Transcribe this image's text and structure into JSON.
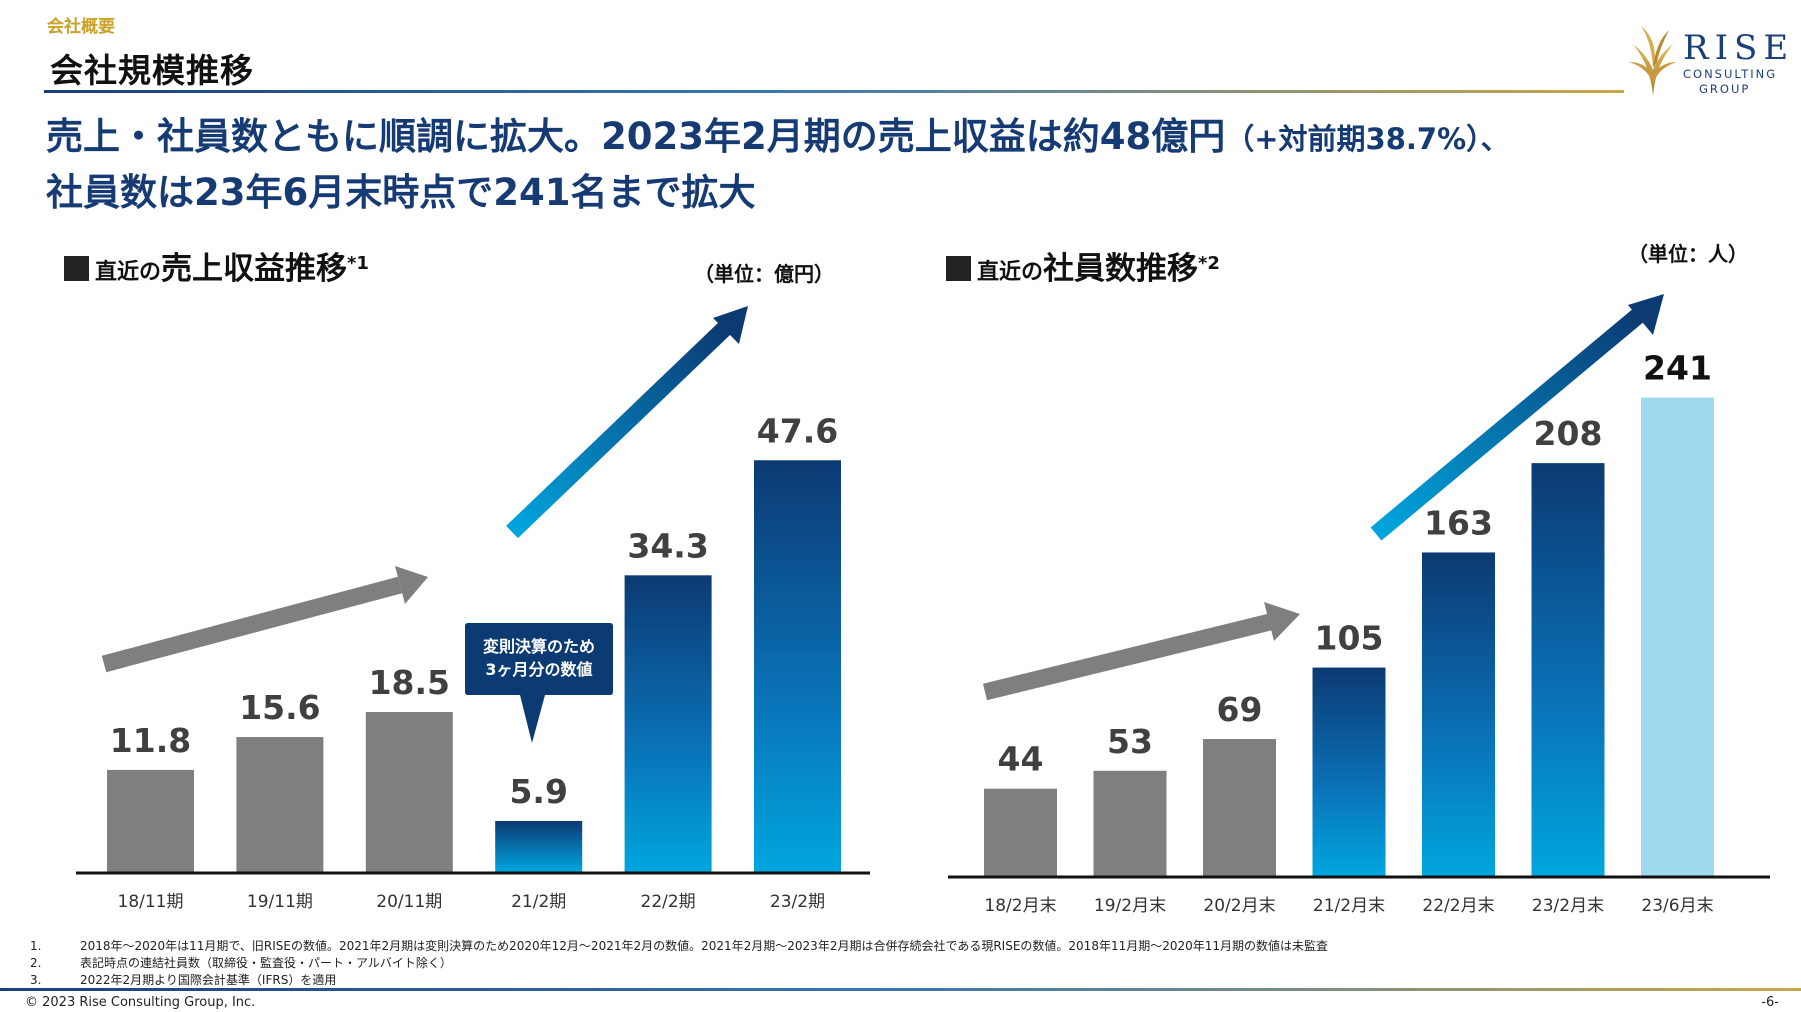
{
  "header": {
    "section_label": "会社概要",
    "page_title": "会社規模推移"
  },
  "logo": {
    "name": "RISE",
    "sub1": "CONSULTING",
    "sub2": "GROUP"
  },
  "headline": {
    "line1_main": "売上・社員数ともに順調に拡大。2023年2月期の売上収益は約48億円",
    "line1_small": "（+対前期38.7%）、",
    "line2": "社員数は23年6月末時点で241名まで拡大"
  },
  "revenue_chart": {
    "heading_prefix": "直近の",
    "heading_main": "売上収益推移",
    "heading_sup": "*1",
    "unit": "（単位：億円）",
    "callout_line1": "変則決算のため",
    "callout_line2": "3ヶ月分の数値"
  },
  "employee_chart": {
    "heading_prefix": "直近の",
    "heading_main": "社員数推移",
    "heading_sup": "*2",
    "unit": "（単位：人）"
  },
  "chart_data": [
    {
      "type": "bar",
      "title": "直近の売上収益推移*1",
      "unit": "（単位：億円）",
      "categories": [
        "18/11期",
        "19/11期",
        "20/11期",
        "21/2期",
        "22/2期",
        "23/2期"
      ],
      "values": [
        11.8,
        15.6,
        18.5,
        5.9,
        34.3,
        47.6
      ],
      "value_labels": [
        "11.8",
        "15.6",
        "18.5",
        "5.9",
        "34.3",
        "47.6"
      ],
      "bar_styles": [
        "gray",
        "gray",
        "gray",
        "blue-light",
        "blue-gradient",
        "blue-gradient"
      ],
      "ylim": [
        0,
        55
      ]
    },
    {
      "type": "bar",
      "title": "直近の社員数推移*2",
      "unit": "（単位：人）",
      "categories": [
        "18/2月末",
        "19/2月末",
        "20/2月末",
        "21/2月末",
        "22/2月末",
        "23/2月末",
        "23/6月末"
      ],
      "values": [
        44,
        53,
        69,
        105,
        163,
        208,
        241
      ],
      "value_labels": [
        "44",
        "53",
        "69",
        "105",
        "163",
        "208",
        "241"
      ],
      "bar_styles": [
        "gray",
        "gray",
        "gray",
        "blue-gradient",
        "blue-gradient",
        "blue-gradient",
        "light-blue"
      ],
      "ylim": [
        0,
        285
      ]
    }
  ],
  "colors": {
    "gray_bar": "#7f7f7f",
    "navy": "#0c3a73",
    "cyan": "#00a3dd",
    "light_blue": "#9dd9ef",
    "gold": "#c9a227"
  },
  "footnotes": [
    {
      "num": "1.",
      "text": "2018年～2020年は11月期で、旧RISEの数値。2021年2月期は変則決算のため2020年12月～2021年2月の数値。2021年2月期～2023年2月期は合併存続会社である現RISEの数値。2018年11月期～2020年11月期の数値は未監査"
    },
    {
      "num": "2.",
      "text": "表記時点の連結社員数（取締役・監査役・パート・アルバイト除く）"
    },
    {
      "num": "3.",
      "text": "2022年2月期より国際会計基準（IFRS）を適用"
    }
  ],
  "footer": {
    "copyright": "© 2023 Rise Consulting Group, Inc.",
    "page_number": "-6-"
  }
}
